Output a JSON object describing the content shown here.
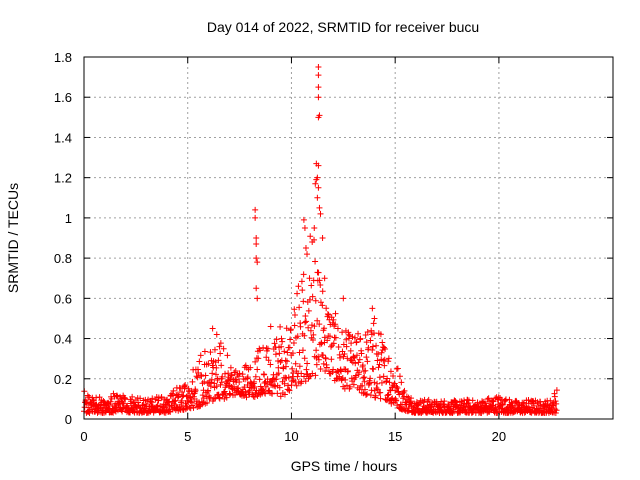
{
  "chart_data": {
    "type": "scatter",
    "title": "Day 014 of 2022, SRMTID for receiver bucu",
    "xlabel": "GPS time / hours",
    "ylabel": "SRMTID / TECUs",
    "xlim": [
      0,
      25.5
    ],
    "ylim": [
      0,
      1.8
    ],
    "xticks": [
      "0",
      "5",
      "10",
      "15",
      "20"
    ],
    "yticks": [
      "0",
      "0.2",
      "0.4",
      "0.6",
      "0.8",
      "1",
      "1.2",
      "1.4",
      "1.6",
      "1.8"
    ],
    "grid": true,
    "marker": "+",
    "color": "#ff0000",
    "envelope": {
      "x": [
        0,
        0.5,
        1,
        1.5,
        2,
        2.5,
        3,
        3.5,
        4,
        4.5,
        5,
        5.5,
        6,
        6.5,
        7,
        7.5,
        8,
        8.5,
        9,
        9.5,
        10,
        10.5,
        11,
        11.5,
        12,
        12.5,
        13,
        13.5,
        14,
        14.5,
        15,
        15.5,
        16,
        16.5,
        17,
        17.5,
        18,
        18.5,
        19,
        19.5,
        20,
        20.5,
        21,
        21.5,
        22,
        22.5,
        22.8
      ],
      "y_low": [
        0.03,
        0.03,
        0.03,
        0.03,
        0.03,
        0.03,
        0.03,
        0.03,
        0.03,
        0.04,
        0.05,
        0.06,
        0.08,
        0.1,
        0.1,
        0.12,
        0.1,
        0.12,
        0.12,
        0.1,
        0.15,
        0.18,
        0.2,
        0.25,
        0.2,
        0.15,
        0.15,
        0.12,
        0.1,
        0.1,
        0.06,
        0.04,
        0.03,
        0.03,
        0.03,
        0.03,
        0.03,
        0.03,
        0.03,
        0.03,
        0.03,
        0.03,
        0.03,
        0.03,
        0.03,
        0.03,
        0.03
      ],
      "y_high": [
        0.15,
        0.11,
        0.11,
        0.13,
        0.12,
        0.11,
        0.1,
        0.11,
        0.11,
        0.16,
        0.18,
        0.32,
        0.35,
        0.4,
        0.32,
        0.25,
        0.3,
        0.38,
        0.35,
        0.5,
        0.45,
        0.8,
        1.0,
        0.7,
        0.55,
        0.45,
        0.42,
        0.45,
        0.5,
        0.4,
        0.32,
        0.14,
        0.1,
        0.1,
        0.09,
        0.1,
        0.09,
        0.1,
        0.09,
        0.11,
        0.12,
        0.1,
        0.09,
        0.1,
        0.09,
        0.1,
        0.17
      ],
      "x_step": 0.0167
    },
    "outliers": [
      [
        8.25,
        1.04
      ],
      [
        8.25,
        1.0
      ],
      [
        8.3,
        0.9
      ],
      [
        8.3,
        0.87
      ],
      [
        8.3,
        0.8
      ],
      [
        8.35,
        0.78
      ],
      [
        8.3,
        0.65
      ],
      [
        8.35,
        0.6
      ],
      [
        10.6,
        0.99
      ],
      [
        10.65,
        0.95
      ],
      [
        10.7,
        0.85
      ],
      [
        10.75,
        0.82
      ],
      [
        11.3,
        1.75
      ],
      [
        11.3,
        1.71
      ],
      [
        11.3,
        1.65
      ],
      [
        11.3,
        1.6
      ],
      [
        11.35,
        1.51
      ],
      [
        11.3,
        1.5
      ],
      [
        11.2,
        1.27
      ],
      [
        11.3,
        1.26
      ],
      [
        11.25,
        1.2
      ],
      [
        11.2,
        1.19
      ],
      [
        11.15,
        1.17
      ],
      [
        11.3,
        1.15
      ],
      [
        11.25,
        1.1
      ],
      [
        11.35,
        1.05
      ],
      [
        11.4,
        1.02
      ],
      [
        11.1,
        0.95
      ],
      [
        11.5,
        0.9
      ],
      [
        11.0,
        0.88
      ],
      [
        11.6,
        0.7
      ],
      [
        12.5,
        0.6
      ],
      [
        13.9,
        0.55
      ],
      [
        14.0,
        0.5
      ],
      [
        6.2,
        0.45
      ],
      [
        6.4,
        0.42
      ],
      [
        9.0,
        0.46
      ]
    ]
  }
}
